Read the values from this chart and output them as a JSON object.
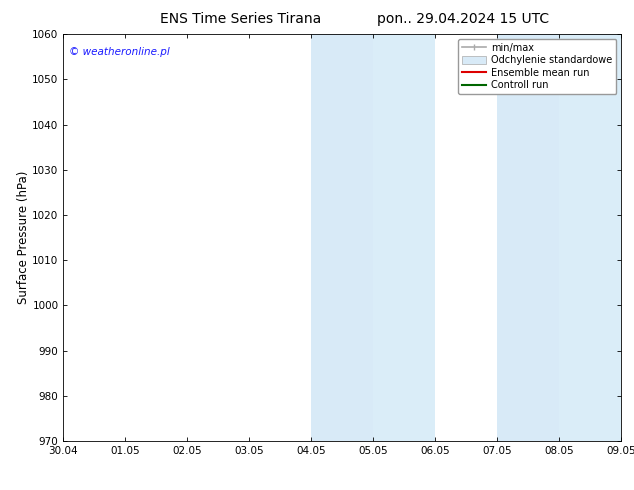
{
  "title_left": "ENS Time Series Tirana",
  "title_right": "pon.. 29.04.2024 15 UTC",
  "ylabel": "Surface Pressure (hPa)",
  "ylim": [
    970,
    1060
  ],
  "yticks": [
    970,
    980,
    990,
    1000,
    1010,
    1020,
    1030,
    1040,
    1050,
    1060
  ],
  "xtick_labels": [
    "30.04",
    "01.05",
    "02.05",
    "03.05",
    "04.05",
    "05.05",
    "06.05",
    "07.05",
    "08.05",
    "09.05"
  ],
  "watermark": "© weatheronline.pl",
  "watermark_color": "#1a1aff",
  "bg_color": "#ffffff",
  "plot_bg_color": "#ffffff",
  "shaded_regions": [
    {
      "xstart": 4.0,
      "xend": 5.0,
      "color": "#d8eaf7"
    },
    {
      "xstart": 5.0,
      "xend": 6.0,
      "color": "#daedf8"
    },
    {
      "xstart": 7.0,
      "xend": 8.0,
      "color": "#d8eaf7"
    },
    {
      "xstart": 8.0,
      "xend": 9.0,
      "color": "#daedf8"
    }
  ],
  "legend_entries": [
    {
      "label": "min/max",
      "color": "#aaaaaa",
      "lw": 1.5
    },
    {
      "label": "Odchylenie standardowe",
      "color": "#d0e8f5",
      "lw": 8
    },
    {
      "label": "Ensemble mean run",
      "color": "#dd0000",
      "lw": 1.5
    },
    {
      "label": "Controll run",
      "color": "#006600",
      "lw": 1.5
    }
  ],
  "title_fontsize": 10,
  "tick_fontsize": 7.5,
  "ylabel_fontsize": 8.5,
  "legend_fontsize": 7,
  "watermark_fontsize": 7.5
}
